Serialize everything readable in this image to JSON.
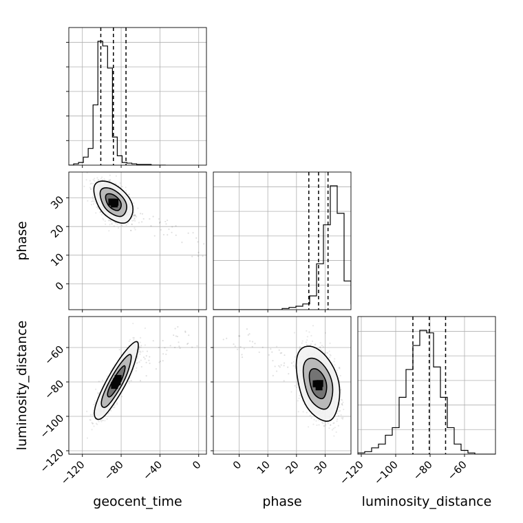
{
  "chart_data": {
    "type": "corner",
    "parameters": [
      "geocent_time",
      "phase",
      "luminosity_distance"
    ],
    "axis_labels": {
      "geocent_time": "geocent_time",
      "phase": "phase",
      "luminosity_distance": "luminosity_distance"
    },
    "ranges": {
      "geocent_time": [
        -134,
        8
      ],
      "phase": [
        -9,
        39
      ],
      "luminosity_distance": [
        -122,
        -42
      ]
    },
    "ticks": {
      "geocent_time": [
        -120,
        -80,
        -40,
        0
      ],
      "phase": [
        0,
        10,
        20,
        30
      ],
      "luminosity_distance": [
        -120,
        -100,
        -80,
        -60
      ]
    },
    "grid": true,
    "quantiles": {
      "geocent_time": [
        -101,
        -88,
        -75
      ],
      "phase": [
        24.3,
        27.7,
        31.0
      ],
      "luminosity_distance": [
        -90,
        -80.5,
        -71
      ]
    },
    "histograms": {
      "geocent_time": {
        "edges_start": -134,
        "bin_width": 5,
        "counts": [
          0,
          2,
          4,
          12,
          25,
          90,
          185,
          178,
          145,
          42,
          14,
          4,
          3,
          2,
          1,
          1,
          1,
          0,
          0,
          0
        ]
      },
      "phase": {
        "edges_start": -9,
        "bin_width": 2.4,
        "counts": [
          0,
          0,
          0,
          0,
          0,
          0,
          0,
          0,
          0,
          0,
          1,
          2,
          3,
          5,
          12,
          40,
          74,
          108,
          84,
          25,
          5
        ]
      },
      "luminosity_distance": {
        "edges_start": -122,
        "bin_width": 4,
        "counts": [
          1,
          2,
          5,
          8,
          15,
          21,
          45,
          67,
          86,
          98,
          96,
          69,
          45,
          21,
          8,
          3,
          1,
          0,
          0,
          0
        ]
      }
    },
    "panels": [
      {
        "x": "geocent_time",
        "y": "phase",
        "center": [
          -88,
          28.5
        ],
        "scale": [
          8,
          3
        ],
        "rho": -0.45,
        "tail": [
          0,
          0
        ],
        "tail_count": 70,
        "contour_levels": [
          1,
          1.7,
          2.5
        ],
        "samples": 2600
      },
      {
        "x": "geocent_time",
        "y": "luminosity_distance",
        "center": [
          -85,
          -80
        ],
        "scale": [
          9,
          9
        ],
        "rho": 0.87,
        "tail": [
          -10,
          -50
        ],
        "tail_count": 55,
        "contour_levels": [
          1,
          1.7,
          2.5
        ],
        "samples": 2600
      },
      {
        "x": "phase",
        "y": "luminosity_distance",
        "center": [
          27.5,
          -81
        ],
        "scale": [
          3,
          9
        ],
        "rho": -0.35,
        "tail": [
          -5,
          -50
        ],
        "tail_count": 55,
        "contour_levels": [
          1,
          1.7,
          2.5
        ],
        "samples": 2600
      }
    ]
  }
}
